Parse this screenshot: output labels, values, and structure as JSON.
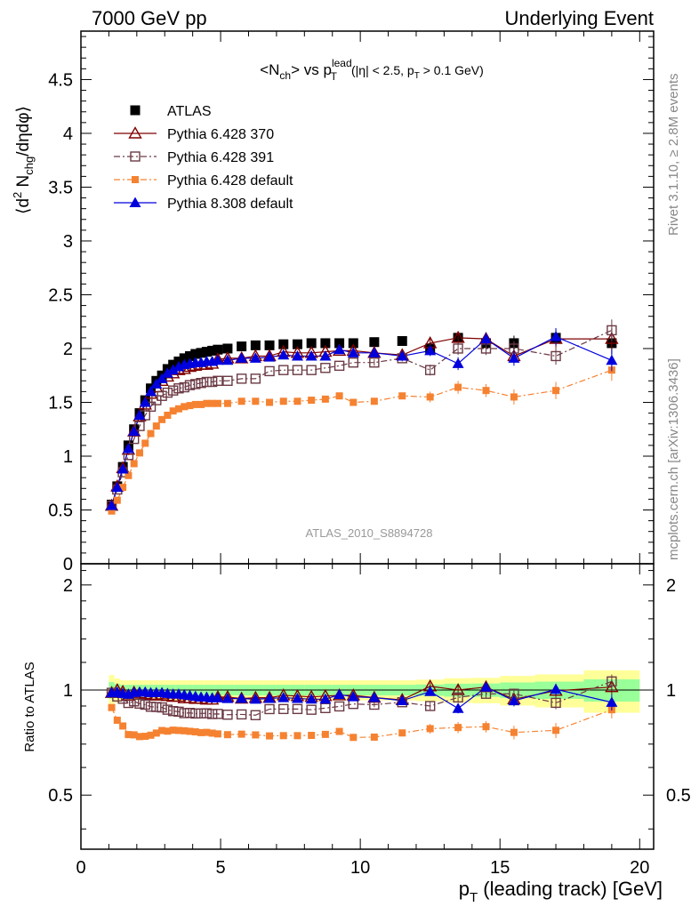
{
  "header": {
    "left": "7000 GeV pp",
    "right": "Underlying Event"
  },
  "side": {
    "rivet": "Rivet 3.1.10, ≥ 2.8M events",
    "mcplots": "mcplots.cern.ch [arXiv:1306.3436]"
  },
  "analysis_id": "ATLAS_2010_S8894728",
  "chart_data": {
    "type": "scatter",
    "title": {
      "main": "<N",
      "sub1": "ch",
      "mid": "> vs p",
      "sup": "lead",
      "sub2": "T",
      "cut_a": "(|η| < 2.5, p",
      "cut_sub": "T",
      "cut_b": " > 0.1 GeV)"
    },
    "ylabel": {
      "a": "⟨d",
      "sup": "2",
      "b": " N",
      "sub": "chg",
      "c": "/dηdφ⟩"
    },
    "xlabel": {
      "a": "p",
      "sub": "T",
      "b": " (leading track) [GeV]"
    },
    "ratio_ylabel": "Ratio to ATLAS",
    "xlim": [
      0,
      20.5
    ],
    "ylim": [
      0,
      4.95
    ],
    "ratio_ylim": [
      0.35,
      2.3
    ],
    "x_ticks": [
      0,
      5,
      10,
      15,
      20
    ],
    "y_ticks": [
      0,
      0.5,
      1,
      1.5,
      2,
      2.5,
      3,
      3.5,
      4,
      4.5
    ],
    "y_tick_labels": [
      "0",
      "0.5",
      "1",
      "1.5",
      "2",
      "2.5",
      "3",
      "3.5",
      "4",
      "4.5"
    ],
    "ratio_ticks": [
      0.5,
      1,
      2
    ],
    "ratio_tick_labels": [
      "0.5",
      "1",
      "2"
    ],
    "legend_position": "top-left",
    "x": [
      1.1,
      1.3,
      1.5,
      1.7,
      1.9,
      2.1,
      2.3,
      2.5,
      2.7,
      2.9,
      3.1,
      3.3,
      3.5,
      3.7,
      3.9,
      4.1,
      4.3,
      4.5,
      4.7,
      4.9,
      5.25,
      5.75,
      6.25,
      6.75,
      7.25,
      7.75,
      8.25,
      8.75,
      9.25,
      9.75,
      10.5,
      11.5,
      12.5,
      13.5,
      14.5,
      15.5,
      17.0,
      19.0
    ],
    "series": [
      {
        "name": "ATLAS",
        "color": "#000000",
        "marker": "filled-square",
        "values": [
          0.55,
          0.72,
          0.9,
          1.1,
          1.25,
          1.4,
          1.52,
          1.63,
          1.7,
          1.75,
          1.81,
          1.85,
          1.88,
          1.91,
          1.93,
          1.95,
          1.96,
          1.97,
          1.98,
          1.99,
          2.0,
          2.02,
          2.03,
          2.03,
          2.04,
          2.04,
          2.05,
          2.05,
          2.05,
          2.05,
          2.06,
          2.07,
          2.0,
          2.1,
          2.05,
          2.05,
          2.1,
          2.05
        ],
        "errors": [
          0.02,
          0.02,
          0.02,
          0.02,
          0.02,
          0.02,
          0.02,
          0.02,
          0.02,
          0.02,
          0.02,
          0.02,
          0.02,
          0.02,
          0.02,
          0.02,
          0.02,
          0.02,
          0.02,
          0.02,
          0.02,
          0.02,
          0.02,
          0.02,
          0.02,
          0.02,
          0.02,
          0.02,
          0.02,
          0.02,
          0.03,
          0.03,
          0.05,
          0.06,
          0.06,
          0.07,
          0.08,
          0.1
        ]
      },
      {
        "name": "Pythia 6.428 370",
        "color": "#7f0000",
        "marker": "open-triangle",
        "line": "solid",
        "values": [
          0.54,
          0.72,
          0.89,
          1.06,
          1.23,
          1.37,
          1.48,
          1.58,
          1.64,
          1.7,
          1.74,
          1.77,
          1.8,
          1.81,
          1.83,
          1.84,
          1.85,
          1.85,
          1.86,
          1.9,
          1.91,
          1.91,
          1.93,
          1.93,
          1.97,
          1.96,
          1.96,
          1.97,
          1.98,
          1.98,
          1.96,
          1.94,
          2.05,
          2.1,
          2.09,
          1.93,
          2.09,
          2.09
        ],
        "errors": [
          0.02,
          0.02,
          0.02,
          0.02,
          0.02,
          0.02,
          0.02,
          0.02,
          0.02,
          0.02,
          0.02,
          0.02,
          0.02,
          0.02,
          0.02,
          0.02,
          0.02,
          0.02,
          0.02,
          0.02,
          0.02,
          0.02,
          0.02,
          0.02,
          0.02,
          0.02,
          0.02,
          0.02,
          0.02,
          0.02,
          0.03,
          0.03,
          0.05,
          0.06,
          0.06,
          0.07,
          0.08,
          0.1
        ]
      },
      {
        "name": "Pythia 6.428 391",
        "color": "#6b3a45",
        "marker": "open-square",
        "line": "dash-dot",
        "values": [
          0.54,
          0.69,
          0.85,
          1.01,
          1.16,
          1.28,
          1.38,
          1.46,
          1.52,
          1.56,
          1.59,
          1.61,
          1.63,
          1.64,
          1.66,
          1.67,
          1.68,
          1.69,
          1.69,
          1.7,
          1.7,
          1.72,
          1.72,
          1.79,
          1.8,
          1.8,
          1.8,
          1.82,
          1.84,
          1.87,
          1.87,
          1.91,
          1.8,
          2.0,
          2.0,
          2.0,
          1.93,
          2.17
        ],
        "errors": [
          0.02,
          0.02,
          0.02,
          0.02,
          0.02,
          0.02,
          0.02,
          0.02,
          0.02,
          0.02,
          0.02,
          0.02,
          0.02,
          0.02,
          0.02,
          0.02,
          0.02,
          0.02,
          0.02,
          0.02,
          0.02,
          0.02,
          0.02,
          0.02,
          0.02,
          0.02,
          0.02,
          0.02,
          0.02,
          0.02,
          0.03,
          0.03,
          0.05,
          0.06,
          0.06,
          0.07,
          0.08,
          0.1
        ]
      },
      {
        "name": "Pythia 6.428 default",
        "color": "#f58231",
        "marker": "filled-square-small",
        "line": "dash-dot",
        "values": [
          0.49,
          0.59,
          0.71,
          0.82,
          0.93,
          1.03,
          1.12,
          1.21,
          1.28,
          1.34,
          1.38,
          1.42,
          1.44,
          1.46,
          1.47,
          1.48,
          1.48,
          1.49,
          1.49,
          1.49,
          1.49,
          1.51,
          1.51,
          1.5,
          1.51,
          1.51,
          1.52,
          1.53,
          1.56,
          1.5,
          1.51,
          1.56,
          1.55,
          1.64,
          1.61,
          1.55,
          1.61,
          1.8
        ],
        "errors": [
          0.02,
          0.02,
          0.02,
          0.02,
          0.02,
          0.02,
          0.02,
          0.02,
          0.02,
          0.02,
          0.02,
          0.02,
          0.02,
          0.02,
          0.02,
          0.02,
          0.02,
          0.02,
          0.02,
          0.02,
          0.02,
          0.02,
          0.02,
          0.02,
          0.02,
          0.02,
          0.02,
          0.02,
          0.02,
          0.02,
          0.03,
          0.03,
          0.05,
          0.06,
          0.06,
          0.07,
          0.08,
          0.1
        ]
      },
      {
        "name": "Pythia 8.308 default",
        "color": "#0000dd",
        "marker": "filled-triangle",
        "line": "solid",
        "values": [
          0.54,
          0.71,
          0.88,
          1.07,
          1.23,
          1.38,
          1.5,
          1.6,
          1.67,
          1.72,
          1.77,
          1.8,
          1.83,
          1.85,
          1.86,
          1.87,
          1.87,
          1.88,
          1.88,
          1.89,
          1.89,
          1.91,
          1.91,
          1.92,
          1.94,
          1.93,
          1.93,
          1.93,
          1.99,
          1.96,
          1.96,
          1.93,
          1.98,
          1.86,
          2.09,
          1.91,
          2.11,
          1.89
        ],
        "errors": [
          0.02,
          0.02,
          0.02,
          0.02,
          0.02,
          0.02,
          0.02,
          0.02,
          0.02,
          0.02,
          0.02,
          0.02,
          0.02,
          0.02,
          0.02,
          0.02,
          0.02,
          0.02,
          0.02,
          0.02,
          0.02,
          0.02,
          0.02,
          0.02,
          0.02,
          0.02,
          0.02,
          0.02,
          0.02,
          0.02,
          0.03,
          0.03,
          0.05,
          0.06,
          0.06,
          0.07,
          0.08,
          0.1
        ]
      }
    ],
    "band_colors": {
      "inner": "#99ff99",
      "outer": "#ffff99"
    }
  }
}
